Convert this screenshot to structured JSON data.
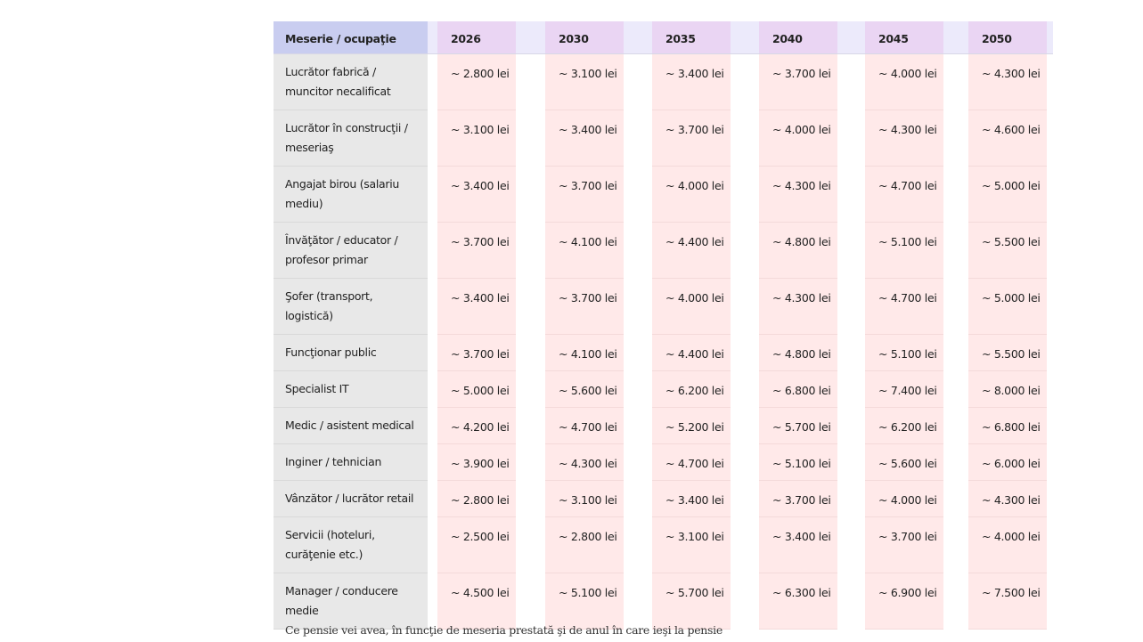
{
  "table": {
    "header": [
      "Meserie / ocupaţie",
      "2026",
      "2030",
      "2035",
      "2040",
      "2045",
      "2050"
    ],
    "rows": [
      [
        "Lucrător fabrică / muncitor necalificat",
        "~ 2.800 lei",
        "~ 3.100 lei",
        "~ 3.400 lei",
        "~ 3.700 lei",
        "~ 4.000 lei",
        "~ 4.300 lei"
      ],
      [
        "Lucrător în construcţii / meseriaş",
        "~ 3.100 lei",
        "~ 3.400 lei",
        "~ 3.700 lei",
        "~ 4.000 lei",
        "~ 4.300 lei",
        "~ 4.600 lei"
      ],
      [
        "Angajat birou (salariu mediu)",
        "~ 3.400 lei",
        "~ 3.700 lei",
        "~ 4.000 lei",
        "~ 4.300 lei",
        "~ 4.700 lei",
        "~ 5.000 lei"
      ],
      [
        "Învăţător / educator / profesor primar",
        "~ 3.700 lei",
        "~ 4.100 lei",
        "~ 4.400 lei",
        "~ 4.800 lei",
        "~ 5.100 lei",
        "~ 5.500 lei"
      ],
      [
        "Şofer (transport, logistică)",
        "~ 3.400 lei",
        "~ 3.700 lei",
        "~ 4.000 lei",
        "~ 4.300 lei",
        "~ 4.700 lei",
        "~ 5.000 lei"
      ],
      [
        "Funcţionar public",
        "~ 3.700 lei",
        "~ 4.100 lei",
        "~ 4.400 lei",
        "~ 4.800 lei",
        "~ 5.100 lei",
        "~ 5.500 lei"
      ],
      [
        "Specialist IT",
        "~ 5.000 lei",
        "~ 5.600 lei",
        "~ 6.200 lei",
        "~ 6.800 lei",
        "~ 7.400 lei",
        "~ 8.000 lei"
      ],
      [
        "Medic / asistent medical",
        "~ 4.200 lei",
        "~ 4.700 lei",
        "~ 5.200 lei",
        "~ 5.700 lei",
        "~ 6.200 lei",
        "~ 6.800 lei"
      ],
      [
        "Inginer / tehnician",
        "~ 3.900 lei",
        "~ 4.300 lei",
        "~ 4.700 lei",
        "~ 5.100 lei",
        "~ 5.600 lei",
        "~ 6.000 lei"
      ],
      [
        "Vânzător / lucrător retail",
        "~ 2.800 lei",
        "~ 3.100 lei",
        "~ 3.400 lei",
        "~ 3.700 lei",
        "~ 4.000 lei",
        "~ 4.300 lei"
      ],
      [
        "Servicii (hoteluri, curăţenie etc.)",
        "~ 2.500 lei",
        "~ 2.800 lei",
        "~ 3.100 lei",
        "~ 3.400 lei",
        "~ 3.700 lei",
        "~ 4.000 lei"
      ],
      [
        "Manager / conducere medie",
        "~ 4.500 lei",
        "~ 5.100 lei",
        "~ 5.700 lei",
        "~ 6.300 lei",
        "~ 6.900 lei",
        "~ 7.500 lei"
      ]
    ]
  },
  "caption": "Ce pensie vei avea, în funcţie de meseria prestată şi de anul în care ieşi la pensie"
}
